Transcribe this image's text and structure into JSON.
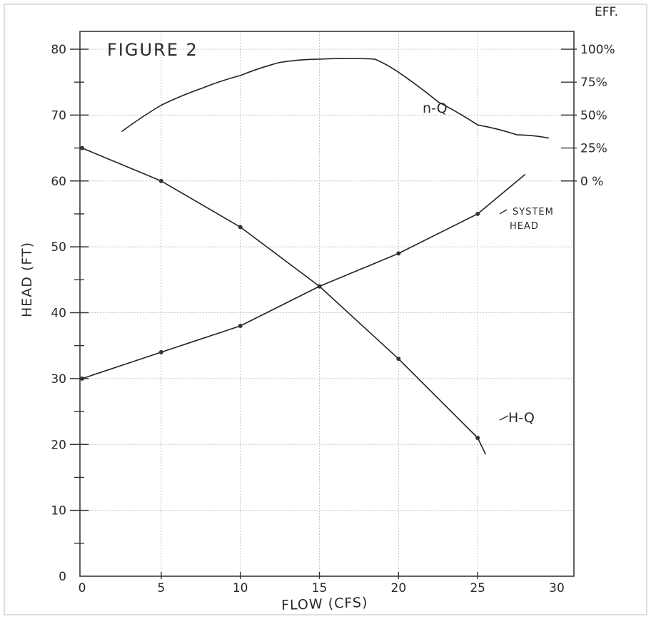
{
  "chart_data": {
    "type": "line",
    "title": "FIGURE 2",
    "xlabel": "FLOW (CFS)",
    "ylabel": "HEAD (FT)",
    "y2label": "EFF.",
    "xlim": [
      0,
      30
    ],
    "ylim": [
      0,
      85
    ],
    "x_ticks": [
      "0",
      "5",
      "10",
      "15",
      "20",
      "25",
      "30"
    ],
    "y_ticks": [
      "0",
      "10",
      "20",
      "30",
      "40",
      "50",
      "60",
      "70",
      "80"
    ],
    "y2_ticks": [
      "0 %",
      "25%",
      "50%",
      "75%",
      "100%"
    ],
    "y2_tick_head_values": [
      60,
      65,
      70,
      75,
      80
    ],
    "grid": true,
    "series": [
      {
        "name": "H-Q",
        "x": [
          0,
          5,
          10,
          15,
          20,
          25,
          25.5
        ],
        "y": [
          65,
          60,
          53,
          44,
          33,
          21,
          18.5
        ]
      },
      {
        "name": "SYSTEM HEAD",
        "x": [
          0,
          5,
          10,
          15,
          20,
          25,
          28
        ],
        "y": [
          30,
          34,
          38,
          44,
          49,
          55,
          61
        ]
      },
      {
        "name": "η-Q",
        "x": [
          2.5,
          5,
          7.5,
          10,
          12.5,
          15,
          18.5,
          20,
          22.5,
          25,
          27.5,
          29.5
        ],
        "y": [
          67.5,
          71.5,
          74,
          76,
          78,
          78.5,
          78.5,
          76.5,
          72,
          68.5,
          67,
          66.5
        ]
      }
    ],
    "annotations": {
      "h_q": "H-Q",
      "eta_q": "n-Q",
      "system_line1": "SYSTEM",
      "system_line2": "HEAD"
    }
  }
}
